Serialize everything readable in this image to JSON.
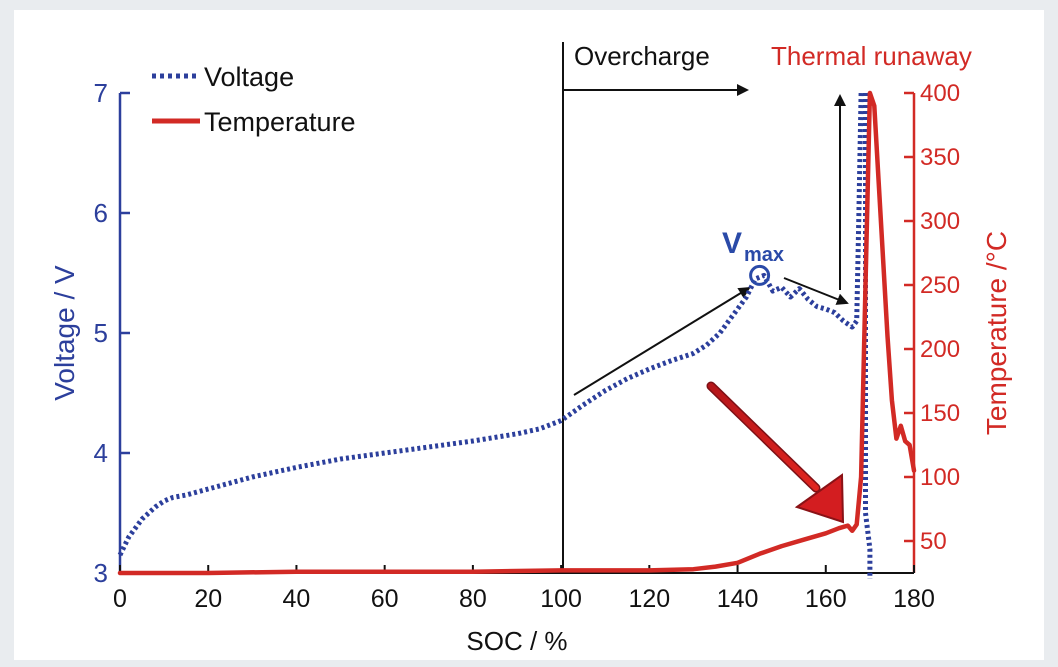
{
  "chart_data": {
    "type": "line",
    "xlabel": "SOC / %",
    "ylabel_left": "Voltage / V",
    "ylabel_right": "Temperature /°C",
    "xlim": [
      0,
      180
    ],
    "ylim_left": [
      3,
      7
    ],
    "ylim_right": [
      25,
      400
    ],
    "x_ticks": [
      "0",
      "20",
      "40",
      "60",
      "80",
      "100",
      "120",
      "140",
      "160",
      "180"
    ],
    "y_left_ticks": [
      "3",
      "4",
      "5",
      "6",
      "7"
    ],
    "y_right_ticks": [
      "50",
      "100",
      "150",
      "200",
      "250",
      "300",
      "350",
      "400"
    ],
    "grid": false,
    "legend_position": "top-left",
    "series": [
      {
        "name": "Voltage",
        "axis": "left",
        "style": "dotted",
        "color": "#2c3f9c",
        "x": [
          0,
          2,
          5,
          8,
          10,
          12,
          15,
          20,
          30,
          40,
          50,
          60,
          70,
          80,
          90,
          95,
          100,
          105,
          110,
          115,
          120,
          125,
          130,
          133,
          136,
          138,
          140,
          142,
          144,
          146,
          148,
          150,
          152,
          154,
          156,
          158,
          160,
          162,
          164,
          166,
          167,
          167.5,
          168
        ],
        "values": [
          3.15,
          3.3,
          3.45,
          3.55,
          3.6,
          3.63,
          3.65,
          3.7,
          3.8,
          3.88,
          3.95,
          4.0,
          4.05,
          4.1,
          4.16,
          4.2,
          4.27,
          4.4,
          4.52,
          4.62,
          4.7,
          4.77,
          4.83,
          4.9,
          5.0,
          5.1,
          5.2,
          5.3,
          5.45,
          5.48,
          5.35,
          5.38,
          5.3,
          5.37,
          5.28,
          5.22,
          5.2,
          5.17,
          5.1,
          5.05,
          5.1,
          6.0,
          7.0
        ]
      },
      {
        "name": "Voltage",
        "axis": "left",
        "style": "dotted-drop",
        "color": "#2c3f9c",
        "x": [
          169,
          169,
          170,
          170
        ],
        "values": [
          7.0,
          3.5,
          3.2,
          2.95
        ]
      },
      {
        "name": "Temperature",
        "axis": "right",
        "style": "solid",
        "color": "#d22a25",
        "x": [
          0,
          20,
          40,
          60,
          80,
          100,
          120,
          130,
          135,
          140,
          145,
          150,
          155,
          160,
          163,
          165,
          166,
          167,
          168,
          169,
          170,
          171,
          172,
          173,
          174,
          175,
          176,
          177,
          178,
          179,
          180
        ],
        "values": [
          25,
          25,
          26,
          26,
          26,
          27,
          27,
          28,
          30,
          33,
          40,
          46,
          51,
          56,
          60,
          62,
          58,
          63,
          100,
          250,
          400,
          390,
          330,
          270,
          210,
          160,
          130,
          140,
          128,
          125,
          105
        ]
      }
    ],
    "legend": [
      {
        "name": "Voltage",
        "style": "dotted",
        "color": "#2c3f9c"
      },
      {
        "name": "Temperature",
        "style": "solid",
        "color": "#d22a25"
      }
    ],
    "annotations": {
      "overcharge_label": "Overcharge",
      "thermal_runaway_label": "Thermal runaway",
      "vmax_label_main": "V",
      "vmax_label_sub": "max",
      "vmax_point": {
        "x": 145,
        "y": 5.48
      },
      "overcharge_start_x": 100
    },
    "colors": {
      "voltage": "#2c3f9c",
      "temperature": "#d22a25",
      "highlight_arrow": "#c8191f",
      "background": "#ffffff",
      "page_background": "#e9ecef"
    }
  }
}
